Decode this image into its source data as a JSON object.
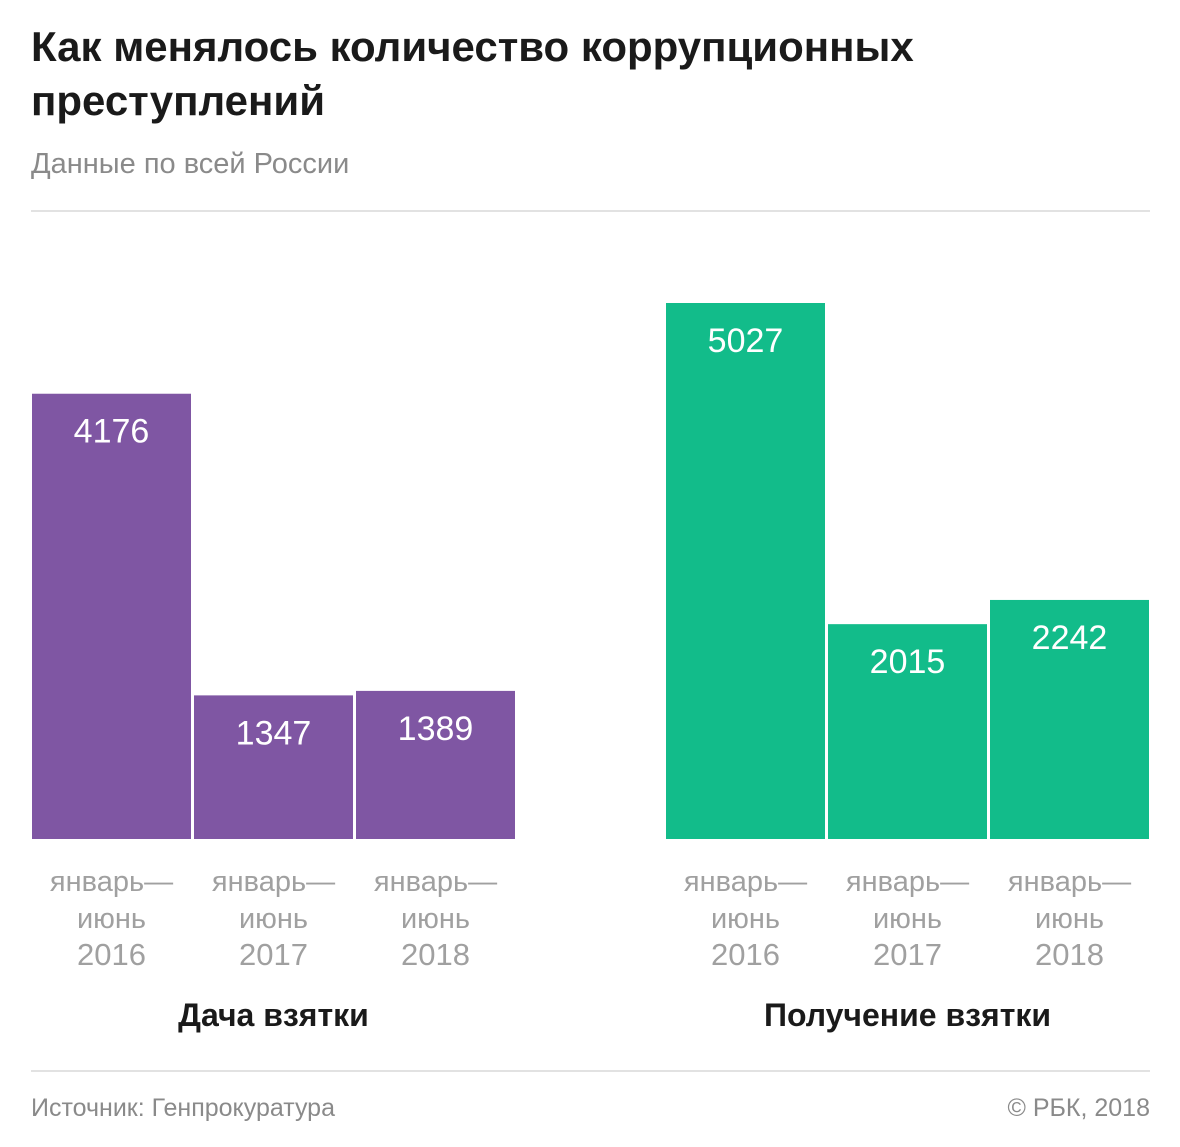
{
  "header": {
    "title": "Как менялось количество коррупционных преступлений",
    "subtitle": "Данные по всей России"
  },
  "footer": {
    "source": "Источник: Генпрокуратура",
    "copyright": "© РБК, 2018"
  },
  "colors": {
    "bribe_giving": "#7f56a3",
    "bribe_taking": "#12bc8a"
  },
  "chart_data": {
    "type": "bar",
    "categories": [
      [
        "январь—",
        "июнь",
        "2016"
      ],
      [
        "январь—",
        "июнь",
        "2017"
      ],
      [
        "январь—",
        "июнь",
        "2018"
      ]
    ],
    "groups": [
      {
        "name": "Дача взятки",
        "values": [
          4176,
          1347,
          1389
        ],
        "color": "#7f56a3"
      },
      {
        "name": "Получение взятки",
        "values": [
          5027,
          2015,
          2242
        ],
        "color": "#12bc8a"
      }
    ],
    "ylim": [
      0,
      5027
    ],
    "grid": false,
    "legend": "none",
    "data_labels": true
  }
}
